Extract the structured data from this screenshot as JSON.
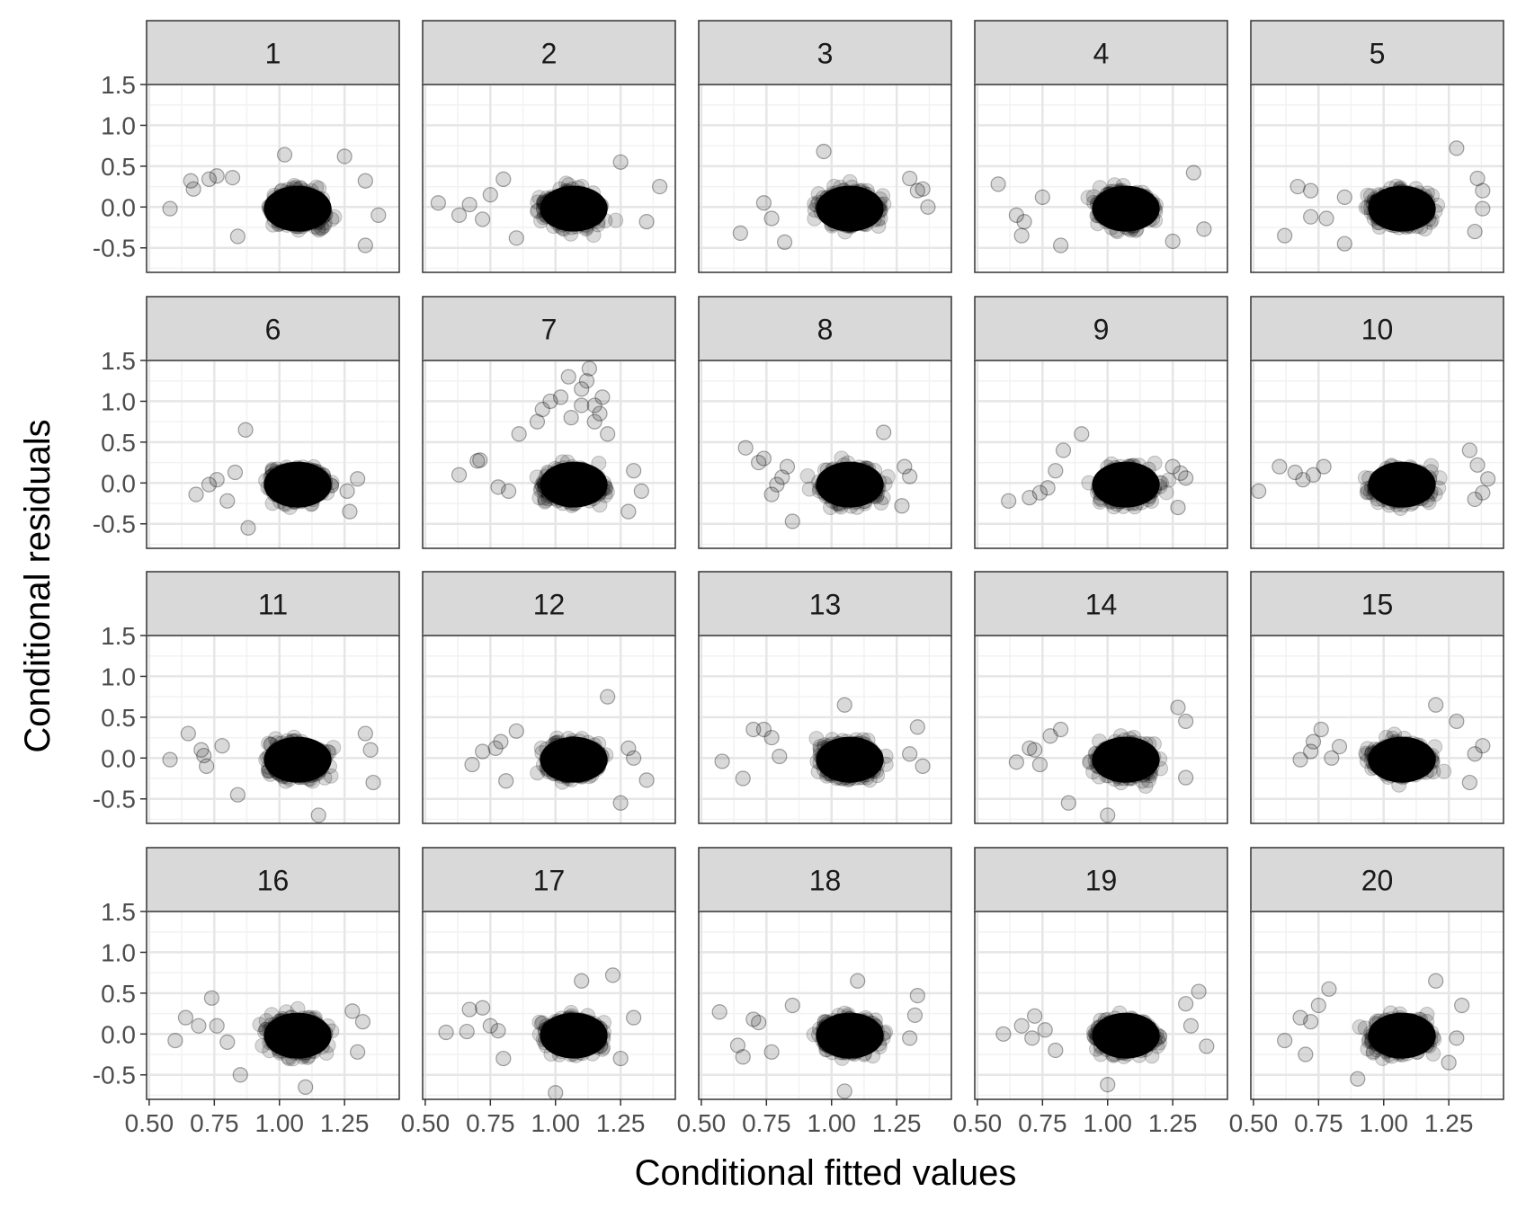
{
  "chart_data": {
    "type": "scatter",
    "xlabel": "Conditional fitted values",
    "ylabel": "Conditional residuals",
    "facet_labels": [
      "1",
      "2",
      "3",
      "4",
      "5",
      "6",
      "7",
      "8",
      "9",
      "10",
      "11",
      "12",
      "13",
      "14",
      "15",
      "16",
      "17",
      "18",
      "19",
      "20"
    ],
    "x_ticks": [
      "0.50",
      "0.75",
      "1.00",
      "1.25"
    ],
    "x_tick_values": [
      0.5,
      0.75,
      1.0,
      1.25
    ],
    "y_ticks": [
      "1.5",
      "1.0",
      "0.5",
      "0.0",
      "-0.5"
    ],
    "y_tick_values": [
      1.5,
      1.0,
      0.5,
      0.0,
      -0.5
    ],
    "xlim": [
      0.49,
      1.46
    ],
    "ylim": [
      -0.8,
      1.5
    ],
    "grid": true,
    "point_color": "#000000",
    "point_opacity": 0.15,
    "facet_strip_color": "#d9d9d9",
    "outliers": [
      [
        [
          0.58,
          -0.02
        ],
        [
          0.66,
          0.32
        ],
        [
          0.67,
          0.22
        ],
        [
          0.73,
          0.34
        ],
        [
          0.76,
          0.38
        ],
        [
          0.82,
          0.36
        ],
        [
          1.38,
          -0.1
        ],
        [
          1.33,
          -0.47
        ],
        [
          1.33,
          0.32
        ],
        [
          1.25,
          0.62
        ],
        [
          1.02,
          0.64
        ],
        [
          0.84,
          -0.36
        ]
      ],
      [
        [
          0.55,
          0.05
        ],
        [
          0.63,
          -0.1
        ],
        [
          0.67,
          0.03
        ],
        [
          0.72,
          -0.15
        ],
        [
          0.75,
          0.15
        ],
        [
          0.8,
          0.34
        ],
        [
          1.4,
          0.25
        ],
        [
          1.35,
          -0.18
        ],
        [
          1.25,
          0.55
        ],
        [
          0.85,
          -0.38
        ]
      ],
      [
        [
          0.65,
          -0.32
        ],
        [
          0.74,
          0.05
        ],
        [
          0.77,
          -0.14
        ],
        [
          0.82,
          -0.43
        ],
        [
          0.97,
          0.68
        ],
        [
          1.3,
          0.35
        ],
        [
          1.33,
          0.2
        ],
        [
          1.37,
          0.0
        ],
        [
          1.35,
          0.22
        ]
      ],
      [
        [
          0.58,
          0.28
        ],
        [
          0.65,
          -0.1
        ],
        [
          0.67,
          -0.35
        ],
        [
          0.68,
          -0.18
        ],
        [
          0.75,
          0.12
        ],
        [
          0.82,
          -0.47
        ],
        [
          1.37,
          -0.27
        ],
        [
          1.33,
          0.42
        ],
        [
          1.25,
          -0.42
        ]
      ],
      [
        [
          0.62,
          -0.35
        ],
        [
          0.67,
          0.25
        ],
        [
          0.72,
          0.2
        ],
        [
          0.72,
          -0.12
        ],
        [
          0.78,
          -0.14
        ],
        [
          0.85,
          0.12
        ],
        [
          1.28,
          0.72
        ],
        [
          1.38,
          -0.02
        ],
        [
          1.38,
          0.2
        ],
        [
          1.36,
          0.35
        ],
        [
          1.35,
          -0.3
        ],
        [
          0.85,
          -0.45
        ]
      ],
      [
        [
          0.68,
          -0.14
        ],
        [
          0.73,
          -0.02
        ],
        [
          0.76,
          0.04
        ],
        [
          0.8,
          -0.22
        ],
        [
          0.83,
          0.13
        ],
        [
          0.87,
          0.65
        ],
        [
          1.27,
          -0.35
        ],
        [
          1.26,
          -0.1
        ],
        [
          0.88,
          -0.55
        ],
        [
          1.3,
          0.05
        ]
      ],
      [
        [
          0.63,
          0.1
        ],
        [
          0.7,
          0.27
        ],
        [
          0.71,
          0.28
        ],
        [
          0.78,
          -0.05
        ],
        [
          0.82,
          -0.1
        ],
        [
          0.86,
          0.6
        ],
        [
          0.93,
          0.75
        ],
        [
          0.95,
          0.9
        ],
        [
          0.98,
          1.0
        ],
        [
          1.02,
          1.05
        ],
        [
          1.05,
          1.3
        ],
        [
          1.06,
          0.8
        ],
        [
          1.1,
          1.15
        ],
        [
          1.12,
          1.25
        ],
        [
          1.13,
          1.4
        ],
        [
          1.15,
          0.95
        ],
        [
          1.18,
          1.05
        ],
        [
          1.17,
          0.85
        ],
        [
          1.1,
          0.95
        ],
        [
          1.15,
          0.75
        ],
        [
          1.2,
          0.6
        ],
        [
          1.3,
          0.15
        ],
        [
          1.33,
          -0.1
        ],
        [
          1.28,
          -0.35
        ]
      ],
      [
        [
          0.67,
          0.43
        ],
        [
          0.72,
          0.25
        ],
        [
          0.74,
          0.3
        ],
        [
          0.77,
          -0.14
        ],
        [
          0.79,
          -0.02
        ],
        [
          0.81,
          0.07
        ],
        [
          0.83,
          0.2
        ],
        [
          0.85,
          -0.47
        ],
        [
          1.3,
          0.08
        ],
        [
          1.27,
          -0.28
        ],
        [
          1.28,
          0.2
        ],
        [
          1.2,
          0.62
        ]
      ],
      [
        [
          0.62,
          -0.22
        ],
        [
          0.7,
          -0.18
        ],
        [
          0.74,
          -0.12
        ],
        [
          0.77,
          -0.06
        ],
        [
          0.8,
          0.15
        ],
        [
          0.83,
          0.4
        ],
        [
          0.9,
          0.6
        ],
        [
          1.3,
          0.06
        ],
        [
          1.27,
          -0.3
        ],
        [
          1.25,
          0.2
        ],
        [
          1.28,
          0.12
        ]
      ],
      [
        [
          0.52,
          -0.1
        ],
        [
          0.6,
          0.2
        ],
        [
          0.66,
          0.13
        ],
        [
          0.69,
          0.04
        ],
        [
          0.73,
          0.1
        ],
        [
          0.77,
          0.2
        ],
        [
          1.4,
          0.05
        ],
        [
          1.38,
          -0.12
        ],
        [
          1.36,
          0.22
        ],
        [
          1.33,
          0.4
        ],
        [
          1.35,
          -0.2
        ]
      ],
      [
        [
          0.58,
          -0.02
        ],
        [
          0.65,
          0.3
        ],
        [
          0.7,
          0.1
        ],
        [
          0.71,
          0.03
        ],
        [
          0.72,
          -0.1
        ],
        [
          0.78,
          0.15
        ],
        [
          0.84,
          -0.45
        ],
        [
          1.36,
          -0.3
        ],
        [
          1.35,
          0.1
        ],
        [
          1.33,
          0.3
        ],
        [
          1.15,
          -0.7
        ]
      ],
      [
        [
          0.68,
          -0.08
        ],
        [
          0.72,
          0.08
        ],
        [
          0.77,
          0.12
        ],
        [
          0.79,
          0.2
        ],
        [
          0.81,
          -0.28
        ],
        [
          0.85,
          0.33
        ],
        [
          1.28,
          0.12
        ],
        [
          1.3,
          0.0
        ],
        [
          1.35,
          -0.27
        ],
        [
          1.2,
          0.75
        ],
        [
          1.25,
          -0.55
        ]
      ],
      [
        [
          0.58,
          -0.04
        ],
        [
          0.66,
          -0.25
        ],
        [
          0.7,
          0.35
        ],
        [
          0.74,
          0.35
        ],
        [
          0.77,
          0.25
        ],
        [
          0.8,
          0.02
        ],
        [
          1.35,
          -0.1
        ],
        [
          1.3,
          0.05
        ],
        [
          1.33,
          0.38
        ],
        [
          1.05,
          0.65
        ]
      ],
      [
        [
          0.65,
          -0.05
        ],
        [
          0.7,
          0.12
        ],
        [
          0.72,
          0.1
        ],
        [
          0.74,
          -0.08
        ],
        [
          0.78,
          0.27
        ],
        [
          0.82,
          0.35
        ],
        [
          0.85,
          -0.55
        ],
        [
          1.3,
          -0.24
        ],
        [
          1.27,
          0.62
        ],
        [
          1.3,
          0.45
        ],
        [
          1.0,
          -0.7
        ]
      ],
      [
        [
          0.68,
          -0.02
        ],
        [
          0.72,
          0.08
        ],
        [
          0.73,
          0.2
        ],
        [
          0.76,
          0.35
        ],
        [
          0.8,
          0.0
        ],
        [
          0.83,
          0.14
        ],
        [
          1.38,
          0.15
        ],
        [
          1.35,
          0.05
        ],
        [
          1.33,
          -0.3
        ],
        [
          1.2,
          0.65
        ],
        [
          1.28,
          0.45
        ]
      ],
      [
        [
          0.6,
          -0.08
        ],
        [
          0.64,
          0.2
        ],
        [
          0.69,
          0.1
        ],
        [
          0.74,
          0.44
        ],
        [
          0.76,
          0.1
        ],
        [
          0.8,
          -0.1
        ],
        [
          0.85,
          -0.5
        ],
        [
          1.32,
          0.15
        ],
        [
          1.3,
          -0.22
        ],
        [
          1.28,
          0.28
        ],
        [
          1.1,
          -0.65
        ]
      ],
      [
        [
          0.58,
          0.02
        ],
        [
          0.66,
          0.03
        ],
        [
          0.67,
          0.3
        ],
        [
          0.72,
          0.32
        ],
        [
          0.75,
          0.1
        ],
        [
          0.78,
          0.04
        ],
        [
          0.8,
          -0.3
        ],
        [
          1.25,
          -0.3
        ],
        [
          1.3,
          0.2
        ],
        [
          1.22,
          0.72
        ],
        [
          1.1,
          0.65
        ],
        [
          1.0,
          -0.72
        ]
      ],
      [
        [
          0.57,
          0.27
        ],
        [
          0.64,
          -0.14
        ],
        [
          0.66,
          -0.28
        ],
        [
          0.7,
          0.18
        ],
        [
          0.72,
          0.14
        ],
        [
          0.77,
          -0.22
        ],
        [
          0.85,
          0.35
        ],
        [
          1.33,
          0.47
        ],
        [
          1.3,
          -0.05
        ],
        [
          1.32,
          0.23
        ],
        [
          1.1,
          0.65
        ],
        [
          1.05,
          -0.7
        ]
      ],
      [
        [
          0.6,
          0.0
        ],
        [
          0.67,
          0.1
        ],
        [
          0.71,
          -0.05
        ],
        [
          0.72,
          0.22
        ],
        [
          0.76,
          0.05
        ],
        [
          0.8,
          -0.2
        ],
        [
          1.38,
          -0.15
        ],
        [
          1.35,
          0.52
        ],
        [
          1.3,
          0.37
        ],
        [
          1.32,
          0.1
        ],
        [
          1.0,
          -0.62
        ]
      ],
      [
        [
          0.62,
          -0.08
        ],
        [
          0.68,
          0.2
        ],
        [
          0.7,
          -0.25
        ],
        [
          0.72,
          0.15
        ],
        [
          0.75,
          0.35
        ],
        [
          0.79,
          0.55
        ],
        [
          1.3,
          0.35
        ],
        [
          1.28,
          -0.05
        ],
        [
          1.2,
          0.65
        ],
        [
          1.25,
          -0.35
        ],
        [
          0.9,
          -0.55
        ]
      ]
    ]
  }
}
